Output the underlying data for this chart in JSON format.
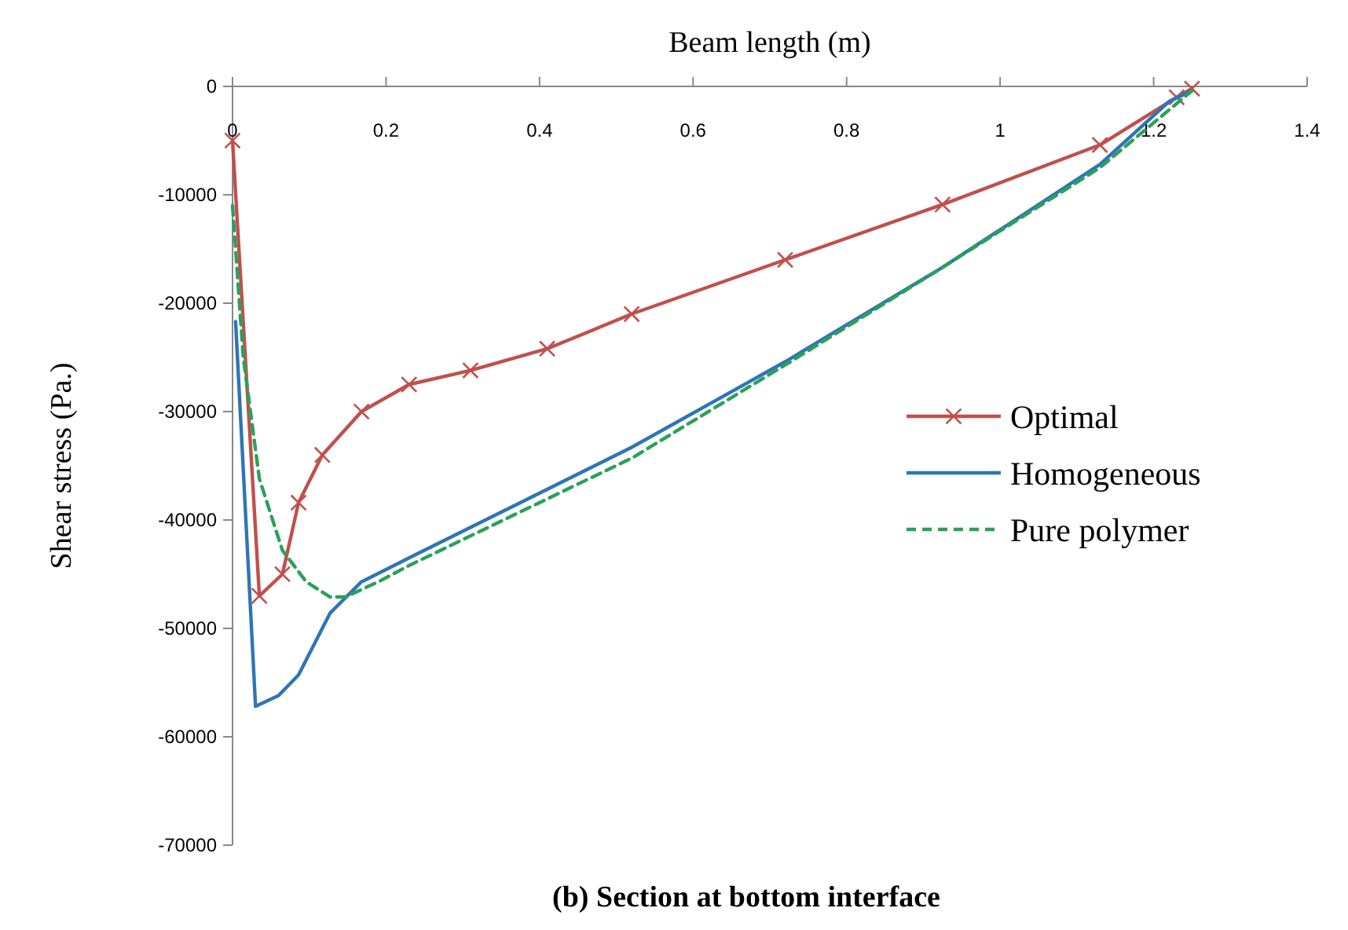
{
  "chart_data": {
    "type": "line",
    "title": "(b) Section at bottom interface",
    "xlabel": "Beam length (m)",
    "ylabel": "Shear stress (Pa.)",
    "xlim": [
      0,
      1.4
    ],
    "xticks": [
      0,
      0.2,
      0.4,
      0.6,
      0.8,
      1,
      1.2,
      1.4
    ],
    "ylim": [
      -70000,
      0
    ],
    "yticks": [
      -70000,
      -60000,
      -50000,
      -40000,
      -30000,
      -20000,
      -10000,
      0
    ],
    "grid": false,
    "legend": "right",
    "series": [
      {
        "name": "Optimal",
        "color": "#c0504d",
        "marker": "cross",
        "line_style": "solid",
        "x": [
          0,
          0.035,
          0.065,
          0.086,
          0.117,
          0.168,
          0.23,
          0.31,
          0.41,
          0.52,
          0.72,
          0.925,
          1.13,
          1.23,
          1.25
        ],
        "values": [
          -5000,
          -47000,
          -45000,
          -38400,
          -34000,
          -30000,
          -27500,
          -26200,
          -24200,
          -21000,
          -16000,
          -10900,
          -5400,
          -1000,
          -200
        ]
      },
      {
        "name": "Homogeneous",
        "color": "#2e75b6",
        "marker": "none",
        "line_style": "solid",
        "x": [
          0.004,
          0.03,
          0.06,
          0.086,
          0.127,
          0.168,
          0.23,
          0.52,
          0.72,
          0.925,
          1.13,
          1.22,
          1.25
        ],
        "values": [
          -21700,
          -57200,
          -56200,
          -54300,
          -48600,
          -45700,
          -43500,
          -33300,
          -25400,
          -16700,
          -7200,
          -1400,
          -400
        ]
      },
      {
        "name": "Pure polymer",
        "color": "#2ca05a",
        "marker": "none",
        "line_style": "dashed",
        "x": [
          0,
          0.014,
          0.035,
          0.065,
          0.096,
          0.127,
          0.147,
          0.19,
          0.23,
          0.52,
          0.72,
          0.925,
          1.13,
          1.25
        ],
        "values": [
          -11000,
          -25000,
          -36200,
          -42800,
          -45700,
          -47100,
          -47100,
          -45700,
          -44200,
          -34300,
          -25700,
          -16700,
          -7500,
          -400
        ]
      }
    ]
  }
}
